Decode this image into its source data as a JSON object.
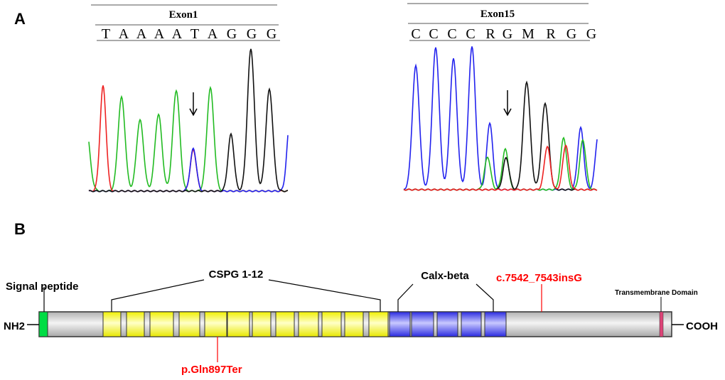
{
  "panel_a": {
    "label": "A",
    "exon1": {
      "title": "Exon1",
      "bases": [
        "T",
        "A",
        "A",
        "A",
        "A",
        "T",
        "A",
        "G",
        "G",
        "G"
      ]
    },
    "exon15": {
      "title": "Exon15",
      "bases": [
        "C",
        "C",
        "C",
        "C",
        "R",
        "G",
        "M",
        "R",
        "G",
        "G"
      ]
    }
  },
  "panel_b": {
    "label": "B",
    "nterm": "NH2",
    "cterm": "COOH",
    "signal_peptide": "Signal peptide",
    "cspg": "CSPG 1-12",
    "calx": "Calx-beta",
    "transmembrane": "Transmembrane Domain",
    "mutation_top": "c.7542_7543insG",
    "mutation_bottom": "p.Gln897Ter"
  },
  "colors": {
    "A": "#22bb22",
    "C": "#2222ee",
    "G": "#111111",
    "T": "#ee2222",
    "signal": "#00dd44",
    "cspg": "#ffff33",
    "calx": "#3333ee",
    "transmembrane": "#dd4477",
    "backbone": "#c8c8c8",
    "mutation": "#ff0000"
  }
}
